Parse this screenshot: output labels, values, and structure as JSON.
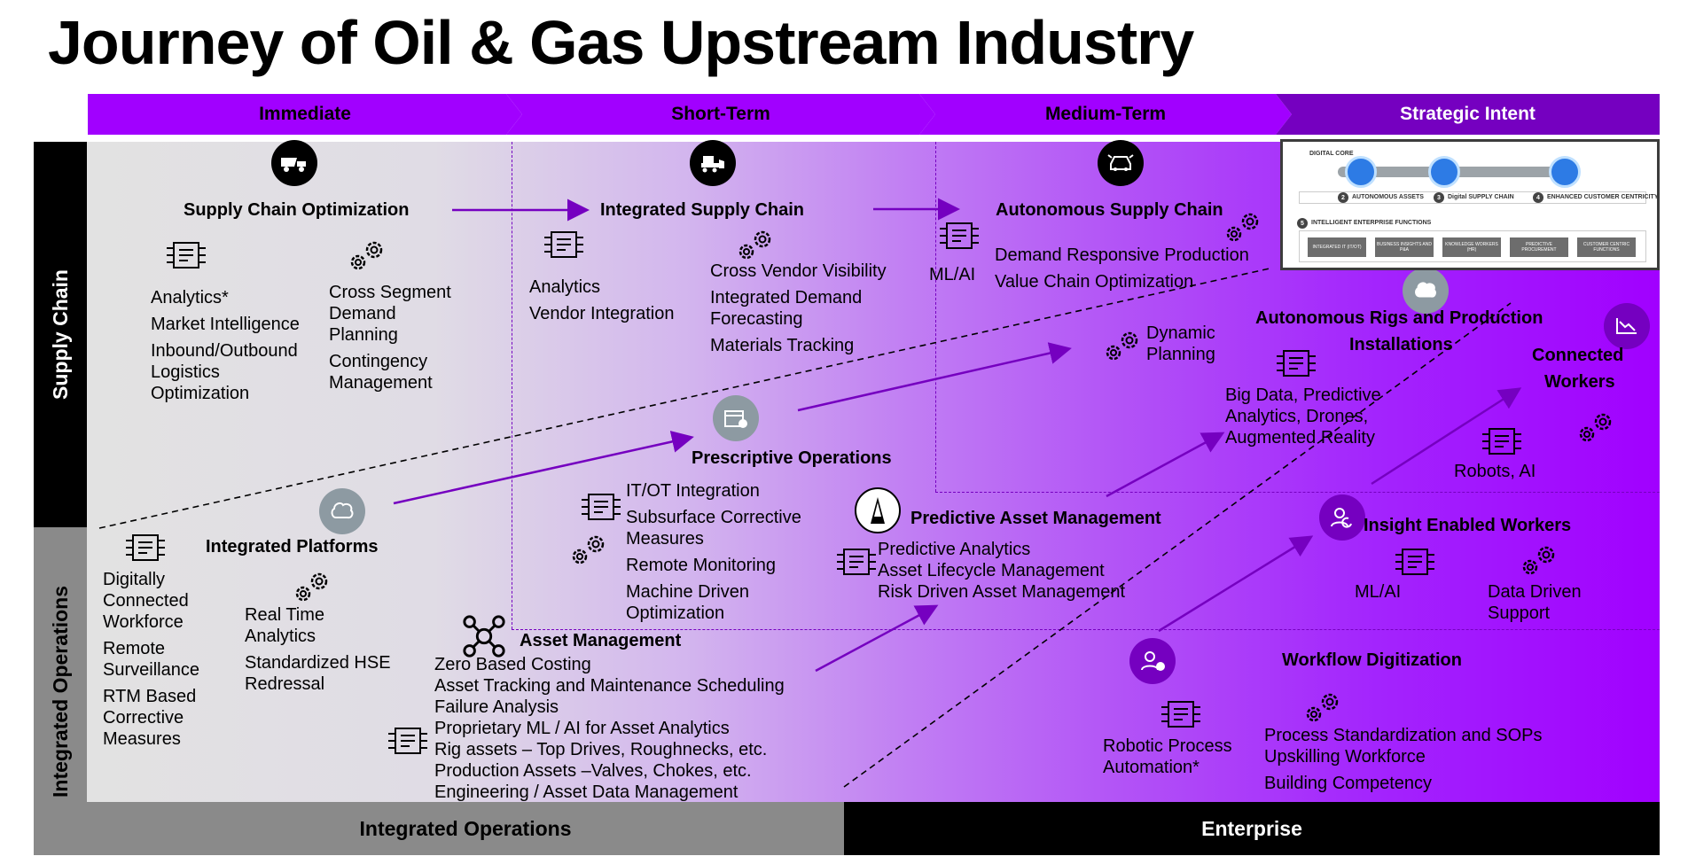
{
  "title": "Journey of Oil & Gas Upstream Industry",
  "phases": [
    "Immediate",
    "Short-Term",
    "Medium-Term",
    "Strategic Intent"
  ],
  "rows": {
    "top": "Supply Chain",
    "bottom": "Integrated Operations"
  },
  "columns": {
    "left": "Integrated Operations",
    "right": "Enterprise"
  },
  "colors": {
    "purple": "#a100ff",
    "dark_purple": "#7500c0",
    "black": "#000000",
    "grey": "#8a8a8a"
  },
  "nodes": {
    "sco": {
      "title": "Supply Chain Optimization",
      "items_a": [
        "Analytics*",
        "Market Intelligence",
        "Inbound/Outbound",
        "Logistics",
        "Optimization"
      ],
      "items_b": [
        "Cross Segment",
        "Demand",
        "Planning",
        "Contingency",
        "Management"
      ]
    },
    "isc": {
      "title": "Integrated Supply Chain",
      "items_a": [
        "Analytics",
        "Vendor Integration"
      ],
      "items_b": [
        "Cross Vendor Visibility",
        "Integrated Demand",
        "Forecasting",
        "Materials Tracking"
      ]
    },
    "asc": {
      "title": "Autonomous Supply Chain",
      "ml": "ML/AI",
      "items": [
        "Demand Responsive Production",
        "Value Chain Optimization"
      ]
    },
    "dyn": {
      "items": [
        "Dynamic",
        "Planning"
      ]
    },
    "arp": {
      "title_l1": "Autonomous Rigs and Production",
      "title_l2": "Installations",
      "items": [
        "Big Data, Predictive",
        "Analytics, Drones,",
        "Augmented Reality"
      ]
    },
    "cw": {
      "title_l1": "Connected",
      "title_l2": "Workers",
      "items": [
        "Robots, AI"
      ]
    },
    "po": {
      "title": "Prescriptive Operations",
      "items": [
        "IT/OT Integration",
        "Subsurface Corrective",
        "Measures",
        "Remote Monitoring",
        "Machine Driven",
        "Optimization"
      ]
    },
    "pam": {
      "title": "Predictive Asset Management",
      "items": [
        "Predictive Analytics",
        "Asset Lifecycle Management",
        "Risk Driven Asset Management"
      ]
    },
    "iew": {
      "title": "Insight Enabled Workers",
      "items_a": [
        "ML/AI"
      ],
      "items_b": [
        "Data Driven",
        "Support"
      ]
    },
    "ip": {
      "title": "Integrated Platforms",
      "items_a": [
        "Digitally",
        "Connected",
        "Workforce",
        "Remote",
        "Surveillance",
        "RTM Based",
        "Corrective",
        "Measures"
      ],
      "items_b": [
        "Real Time",
        "Analytics",
        "Standardized HSE",
        "Redressal"
      ]
    },
    "am": {
      "title": "Asset Management",
      "items": [
        "Zero Based Costing",
        "Asset Tracking and Maintenance Scheduling",
        "Failure Analysis",
        "Proprietary ML / AI for Asset Analytics",
        "Rig assets – Top Drives, Roughnecks, etc.",
        "Production Assets –Valves, Chokes, etc.",
        "Engineering / Asset Data Management"
      ]
    },
    "wd": {
      "title": "Workflow Digitization",
      "items_a": [
        "Robotic Process",
        "Automation*"
      ],
      "items_b": [
        "Process Standardization and SOPs",
        "Upskilling Workforce",
        "Building Competency"
      ]
    }
  },
  "digital_core": {
    "label": "DIGITAL CORE",
    "n2": "2",
    "s2": "AUTONOMOUS ASSETS",
    "n3": "3",
    "s3": "Digital SUPPLY CHAIN",
    "n4": "4",
    "s4": "ENHANCED CUSTOMER CENTRICITY",
    "n5": "5",
    "s5": "INTELLIGENT ENTERPRISE FUNCTIONS",
    "boxes": [
      "INTEGRATED IT (IT/OT)",
      "BUSINESS INSIGHTS AND P&A",
      "KNOWLEDGE WORKERS (HR)",
      "PREDICTIVE PROCUREMENT",
      "CUSTOMER CENTRIC FUNCTIONS"
    ]
  }
}
